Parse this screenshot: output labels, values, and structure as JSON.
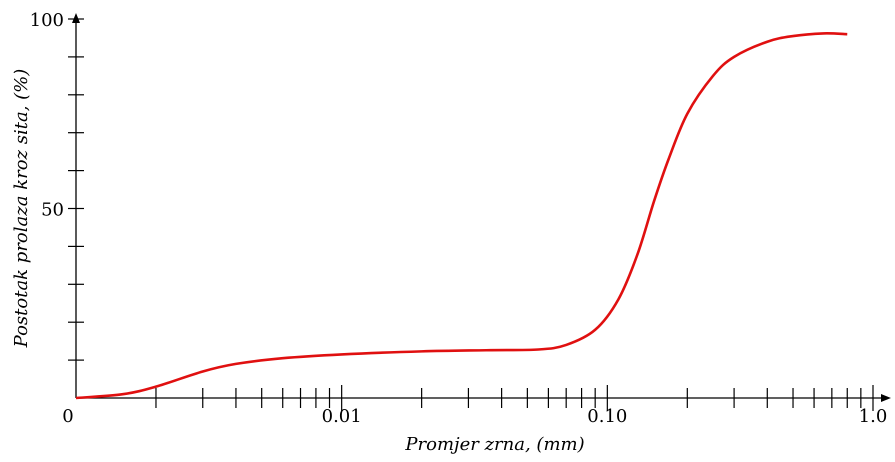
{
  "chart_data": {
    "type": "line",
    "xlabel": "Promjer zrna,  (mm)",
    "ylabel": "Postotak prolaza kroz sita,  (%)",
    "x_scale": "log",
    "x_tick_labels": [
      {
        "value": 0.001,
        "label": "0"
      },
      {
        "value": 0.01,
        "label": "0.01"
      },
      {
        "value": 0.1,
        "label": "0.10"
      },
      {
        "value": 1.0,
        "label": "1.0"
      }
    ],
    "y_tick_labels": [
      {
        "value": 0,
        "label": ""
      },
      {
        "value": 50,
        "label": "50"
      },
      {
        "value": 100,
        "label": "100"
      }
    ],
    "xlim": [
      0.001,
      1.0
    ],
    "ylim": [
      0,
      100
    ],
    "grid": false,
    "series": [
      {
        "color": "#e01010",
        "points": [
          [
            0.001,
            0
          ],
          [
            0.0015,
            1
          ],
          [
            0.002,
            3
          ],
          [
            0.003,
            7
          ],
          [
            0.004,
            9
          ],
          [
            0.006,
            10.5
          ],
          [
            0.01,
            11.5
          ],
          [
            0.02,
            12.3
          ],
          [
            0.035,
            12.6
          ],
          [
            0.055,
            12.8
          ],
          [
            0.07,
            14
          ],
          [
            0.09,
            18
          ],
          [
            0.11,
            26
          ],
          [
            0.13,
            38
          ],
          [
            0.15,
            52
          ],
          [
            0.17,
            63
          ],
          [
            0.2,
            75
          ],
          [
            0.25,
            85
          ],
          [
            0.3,
            90
          ],
          [
            0.4,
            94
          ],
          [
            0.5,
            95.5
          ],
          [
            0.65,
            96.2
          ],
          [
            0.8,
            96
          ]
        ]
      }
    ]
  }
}
